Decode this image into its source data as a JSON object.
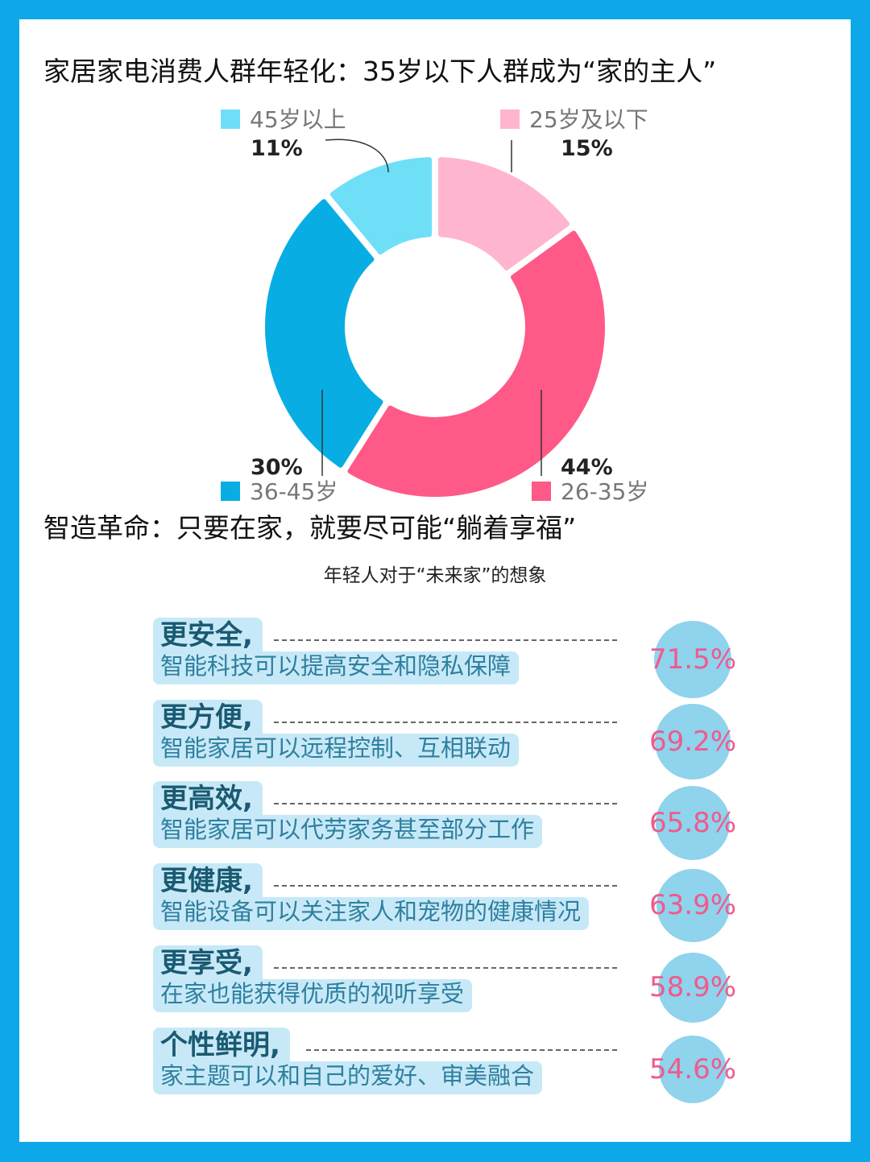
{
  "header": {
    "title1": "家居家电消费人群年轻化：35岁以下人群成为“家的主人”",
    "title2": "智造革命：只要在家，就要尽可能“躺着享福”",
    "subtitle": "年轻人对于“未来家”的想象"
  },
  "chart_data": [
    {
      "type": "pie",
      "title": "家居家电消费人群年轻化：35岁以下人群成为“家的主人”",
      "donut": true,
      "categories": [
        "25岁及以下",
        "26-35岁",
        "36-45岁",
        "45岁以上"
      ],
      "values": [
        15,
        44,
        30,
        11
      ],
      "value_labels": [
        "15%",
        "44%",
        "30%",
        "11%"
      ],
      "colors": [
        "#ffb5cf",
        "#ff5988",
        "#08aee3",
        "#6fdff8"
      ],
      "legend_placement": "beside each slice"
    },
    {
      "type": "bar",
      "title": "年轻人对于“未来家”的想象",
      "categories": [
        "更安全",
        "更方便",
        "更高效",
        "更健康",
        "更享受",
        "个性鲜明"
      ],
      "values": [
        71.5,
        69.2,
        65.8,
        63.9,
        58.9,
        54.6
      ],
      "value_labels": [
        "71.5%",
        "69.2%",
        "65.8%",
        "63.9%",
        "58.9%",
        "54.6%"
      ],
      "descriptions": [
        "智能科技可以提高安全和隐私保障",
        "智能家居可以远程控制、互相联动",
        "智能家居可以代劳家务甚至部分工作",
        "智能设备可以关注家人和宠物的健康情况",
        "在家也能获得优质的视听享受",
        "家主题可以和自己的爱好、审美融合"
      ],
      "bubble_color": "#8fd3ec",
      "value_color": "#f05a8c"
    }
  ]
}
